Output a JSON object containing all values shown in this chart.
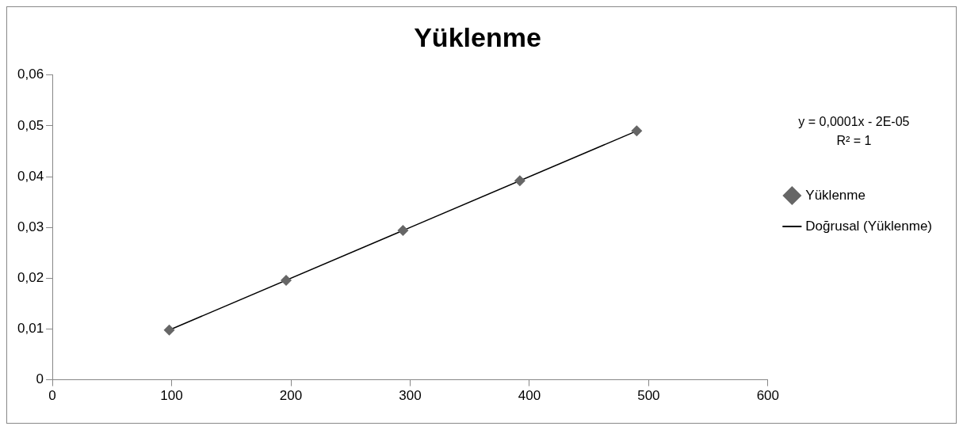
{
  "chart_data": {
    "type": "scatter",
    "title": "Yüklenme",
    "x": [
      98,
      196,
      294,
      392,
      490
    ],
    "series": [
      {
        "name": "Yüklenme",
        "type": "scatter",
        "color": "#666666",
        "values": [
          0.0098,
          0.0196,
          0.0294,
          0.0392,
          0.049
        ]
      },
      {
        "name": "Doğrusal (Yüklenme)",
        "type": "line",
        "color": "#000000",
        "x": [
          98,
          490
        ],
        "values": [
          0.0098,
          0.049
        ],
        "marker": "none"
      }
    ],
    "xlim": [
      0,
      600
    ],
    "xticks": [
      0,
      100,
      200,
      300,
      400,
      500,
      600
    ],
    "ylim": [
      0,
      0.06
    ],
    "yticks": [
      0,
      {
        "value": 0.01,
        "label": "0,01"
      },
      {
        "value": 0.02,
        "label": "0,02"
      },
      {
        "value": 0.03,
        "label": "0,03"
      },
      {
        "value": 0.04,
        "label": "0,04"
      },
      {
        "value": 0.05,
        "label": "0,05"
      },
      {
        "value": 0.06,
        "label": "0,06"
      }
    ],
    "annotations": [
      "y = 0,0001x - 2E-05",
      "R² = 1"
    ],
    "grid": false,
    "legend": "right",
    "marker": "diamond"
  }
}
